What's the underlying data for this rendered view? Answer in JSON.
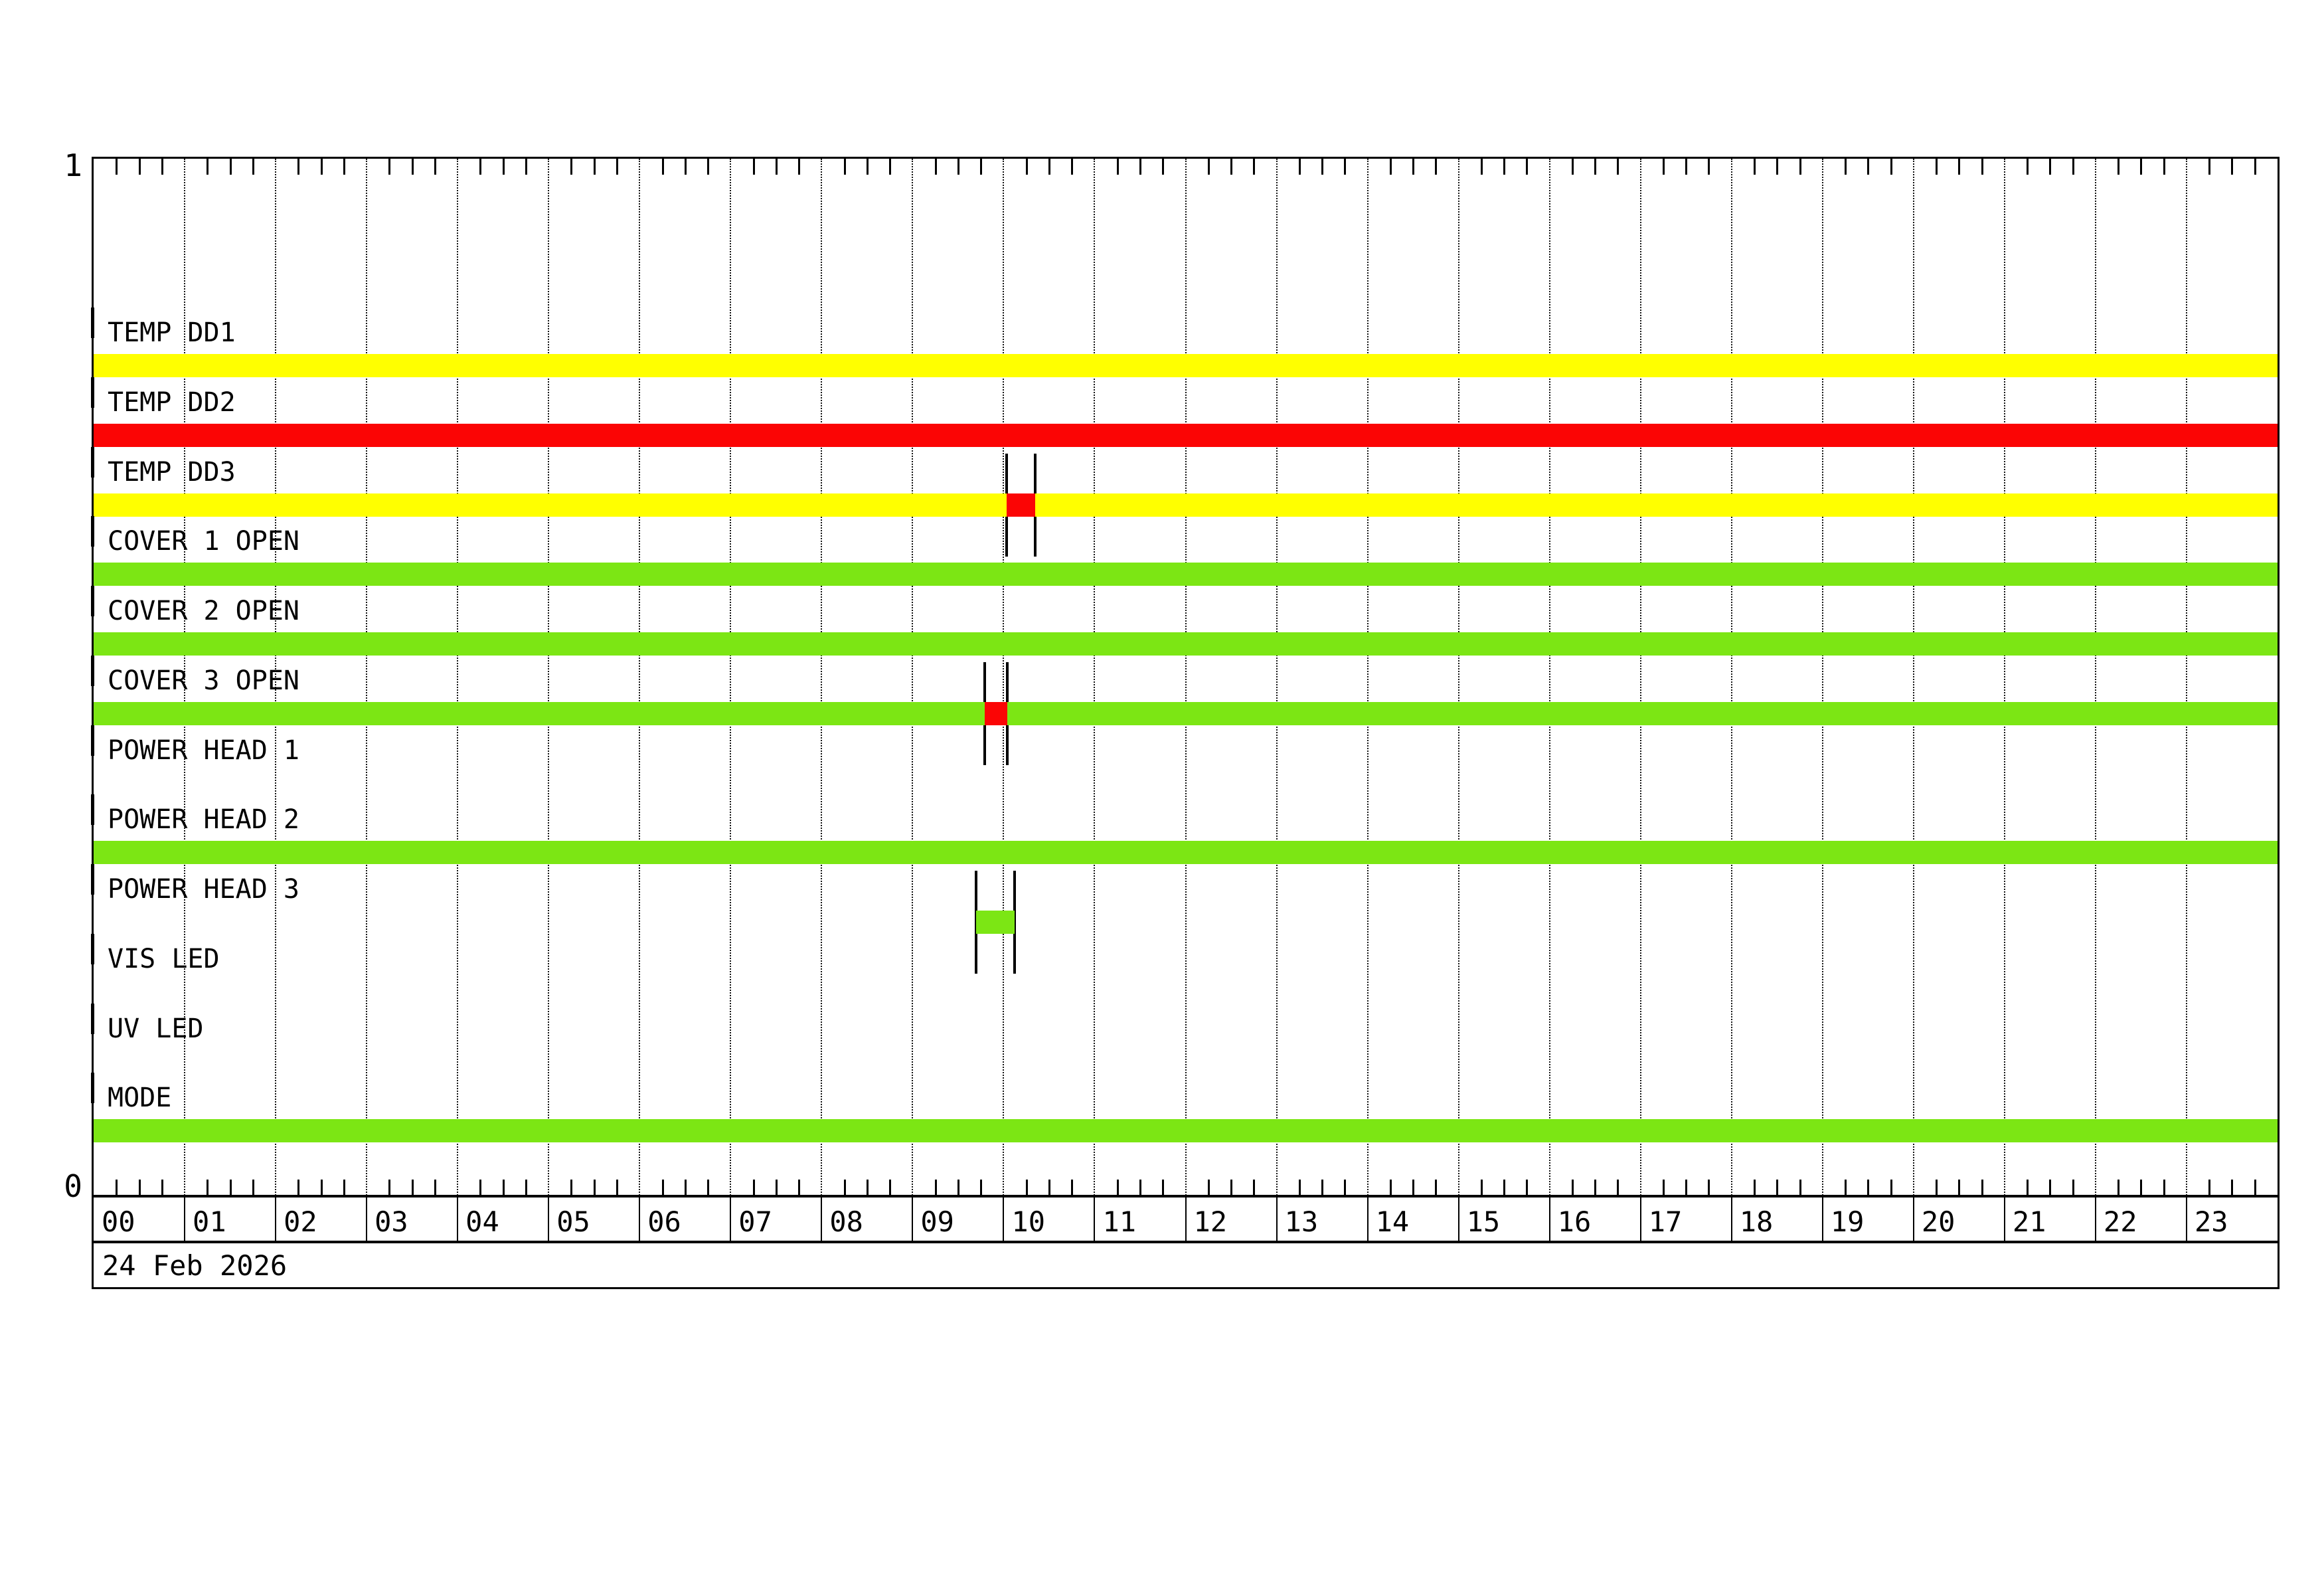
{
  "chart_data": {
    "type": "bar",
    "subtype": "status-timeline",
    "title": "",
    "x_axis": {
      "unit": "hours",
      "range": [
        0,
        24
      ],
      "minor_tick_minutes": 15,
      "hour_labels": [
        "00",
        "01",
        "02",
        "03",
        "04",
        "05",
        "06",
        "07",
        "08",
        "09",
        "10",
        "11",
        "12",
        "13",
        "14",
        "15",
        "16",
        "17",
        "18",
        "19",
        "20",
        "21",
        "22",
        "23"
      ],
      "date": "24 Feb 2026"
    },
    "y_axis": {
      "top_label": "1",
      "bottom_label": "0"
    },
    "palette": {
      "green": "#7ce614",
      "yellow": "#ffff00",
      "red": "#fb0505"
    },
    "grid": {
      "hour_gridlines": true,
      "style": "dotted"
    },
    "rows": [
      {
        "label": "TEMP DD1",
        "segments": [
          {
            "start": 0,
            "end": 24,
            "color": "yellow"
          }
        ]
      },
      {
        "label": "TEMP DD2",
        "segments": [
          {
            "start": 0,
            "end": 24,
            "color": "red"
          }
        ]
      },
      {
        "label": "TEMP DD3",
        "segments": [
          {
            "start": 0,
            "end": 24,
            "color": "yellow"
          },
          {
            "start": 10.03,
            "end": 10.35,
            "color": "red",
            "marked": true
          }
        ]
      },
      {
        "label": "COVER 1 OPEN",
        "segments": [
          {
            "start": 0,
            "end": 24,
            "color": "green"
          }
        ]
      },
      {
        "label": "COVER 2 OPEN",
        "segments": [
          {
            "start": 0,
            "end": 24,
            "color": "green"
          }
        ]
      },
      {
        "label": "COVER 3 OPEN",
        "segments": [
          {
            "start": 0,
            "end": 24,
            "color": "green"
          },
          {
            "start": 9.79,
            "end": 10.04,
            "color": "red",
            "marked": true
          }
        ]
      },
      {
        "label": "POWER HEAD 1",
        "segments": []
      },
      {
        "label": "POWER HEAD 2",
        "segments": [
          {
            "start": 0,
            "end": 24,
            "color": "green"
          }
        ]
      },
      {
        "label": "POWER HEAD 3",
        "segments": [
          {
            "start": 9.7,
            "end": 10.12,
            "color": "green",
            "marked": true
          }
        ]
      },
      {
        "label": "VIS LED",
        "segments": []
      },
      {
        "label": "UV LED",
        "segments": []
      },
      {
        "label": "MODE",
        "segments": [
          {
            "start": 0,
            "end": 24,
            "color": "green"
          }
        ]
      }
    ]
  }
}
